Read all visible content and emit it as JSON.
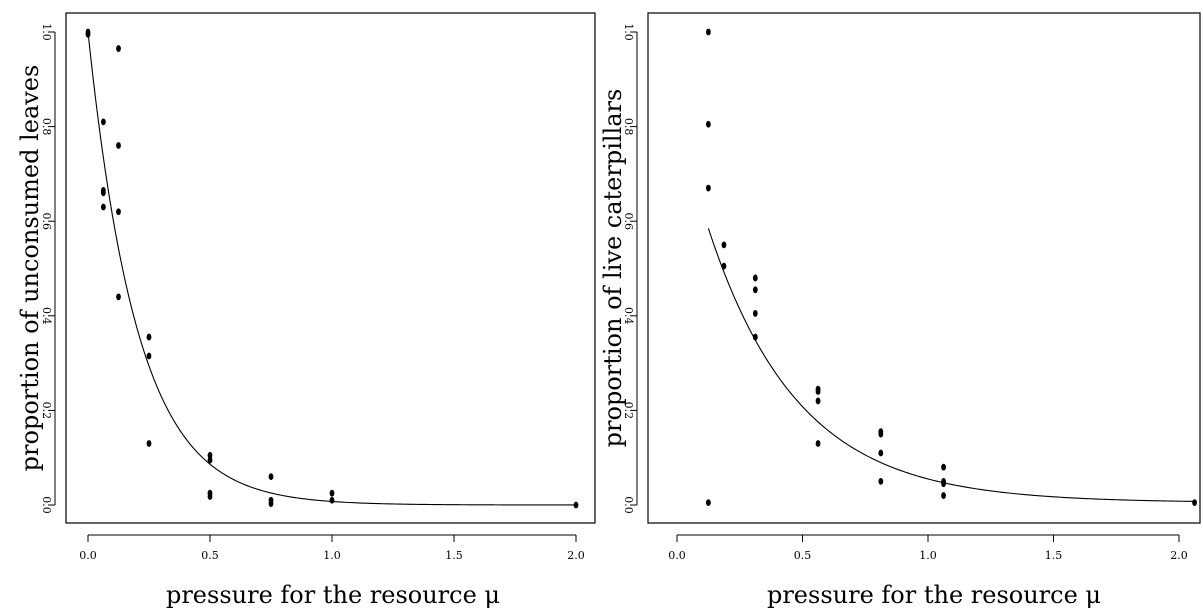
{
  "chart_data": [
    {
      "type": "scatter",
      "title": "",
      "xlabel": "pressure for the resource μ",
      "ylabel": "proportion of unconsumed leaves",
      "xlim": [
        0.0,
        2.0
      ],
      "ylim": [
        0.0,
        1.0
      ],
      "xticks": [
        "0.0",
        "0.5",
        "1.0",
        "1.5",
        "2.0"
      ],
      "yticks": [
        "0.0",
        "0.2",
        "0.4",
        "0.6",
        "0.8",
        "1.0"
      ],
      "grid": false,
      "series": [
        {
          "kind": "points",
          "x": [
            0.0,
            0.0,
            0.063,
            0.063,
            0.063,
            0.063,
            0.125,
            0.125,
            0.125,
            0.125,
            0.25,
            0.25,
            0.25,
            0.5,
            0.5,
            0.5,
            0.5,
            0.75,
            0.75,
            0.75,
            1.0,
            1.0,
            2.0
          ],
          "y": [
            1.0,
            0.995,
            0.81,
            0.665,
            0.66,
            0.63,
            0.965,
            0.76,
            0.62,
            0.44,
            0.355,
            0.315,
            0.13,
            0.105,
            0.095,
            0.025,
            0.018,
            0.06,
            0.01,
            0.003,
            0.025,
            0.01,
            0.0
          ]
        },
        {
          "kind": "curve",
          "model": "exponential",
          "a": 1.0,
          "b": 4.9,
          "c": 0.0,
          "xrange": [
            0.0,
            2.0
          ]
        }
      ]
    },
    {
      "type": "scatter",
      "title": "",
      "xlabel": "pressure for the resource μ",
      "ylabel": "proportion of live caterpillars",
      "xlim": [
        0.0,
        2.0
      ],
      "ylim": [
        0.0,
        1.0
      ],
      "xticks": [
        "0.0",
        "0.5",
        "1.0",
        "1.5",
        "2.0"
      ],
      "yticks": [
        "0.0",
        "0.2",
        "0.4",
        "0.6",
        "0.8",
        "1.0"
      ],
      "grid": false,
      "series": [
        {
          "kind": "points",
          "x": [
            0.125,
            0.125,
            0.125,
            0.125,
            0.187,
            0.187,
            0.312,
            0.312,
            0.312,
            0.312,
            0.562,
            0.562,
            0.562,
            0.562,
            0.812,
            0.812,
            0.812,
            0.812,
            1.062,
            1.062,
            1.062,
            1.062,
            2.062
          ],
          "y": [
            1.0,
            0.805,
            0.67,
            0.005,
            0.55,
            0.505,
            0.48,
            0.455,
            0.405,
            0.355,
            0.245,
            0.24,
            0.22,
            0.13,
            0.155,
            0.15,
            0.11,
            0.05,
            0.08,
            0.05,
            0.045,
            0.02,
            0.005
          ]
        },
        {
          "kind": "curve",
          "model": "exponential",
          "a": 0.58,
          "b": 2.8,
          "c": 0.005,
          "xrange": [
            0.125,
            2.062
          ]
        }
      ]
    }
  ]
}
